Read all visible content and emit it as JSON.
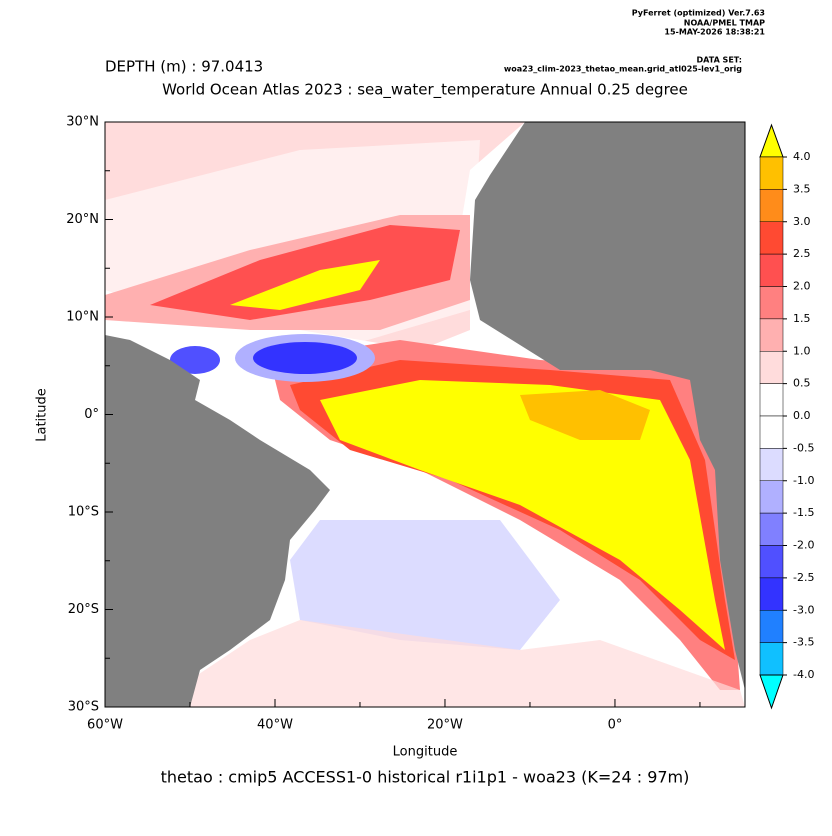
{
  "header": {
    "software": "PyFerret (optimized) Ver.7.63",
    "lab": "NOAA/PMEL TMAP",
    "timestamp": "15-MAY-2026 18:38:21",
    "dataset_label": "DATA SET:",
    "dataset": "woa23_clim-2023_thetao_mean.grid_atl025-lev1_orig",
    "depth": "DEPTH (m) : 97.0413",
    "title": "World Ocean Atlas 2023 : sea_water_temperature Annual  0.25 degree"
  },
  "map": {
    "xlabel": "Longitude",
    "ylabel": "Latitude",
    "caption": "thetao : cmip5 ACCESS1-0 historical r1i1p1 - woa23  (K=24 : 97m)",
    "xlim": [
      -60,
      15.3
    ],
    "ylim": [
      -30,
      30
    ],
    "xticks": [
      {
        "value": -60,
        "label": "60°W"
      },
      {
        "value": -40,
        "label": "40°W"
      },
      {
        "value": -20,
        "label": "20°W"
      },
      {
        "value": 0,
        "label": "0°"
      }
    ],
    "xminor": [
      -50,
      -30,
      -10,
      10
    ],
    "yticks": [
      {
        "value": 30,
        "label": "30°N"
      },
      {
        "value": 20,
        "label": "20°N"
      },
      {
        "value": 10,
        "label": "10°N"
      },
      {
        "value": 0,
        "label": "0°"
      },
      {
        "value": -10,
        "label": "10°S"
      },
      {
        "value": -20,
        "label": "20°S"
      },
      {
        "value": -30,
        "label": "30°S"
      }
    ],
    "yminor": [
      25,
      15,
      5,
      -5,
      -15,
      -25
    ]
  },
  "colorbar": {
    "levels": [
      {
        "value": 4,
        "label": "4.0"
      },
      {
        "value": 3.5,
        "label": "3.5"
      },
      {
        "value": 3,
        "label": "3.0"
      },
      {
        "value": 2.5,
        "label": "2.5"
      },
      {
        "value": 2,
        "label": "2.0"
      },
      {
        "value": 1.5,
        "label": "1.5"
      },
      {
        "value": 1,
        "label": "1.0"
      },
      {
        "value": 0.5,
        "label": "0.5"
      },
      {
        "value": 0,
        "label": "0.0"
      },
      {
        "value": -0.5,
        "label": "-0.5"
      },
      {
        "value": -1,
        "label": "-1.0"
      },
      {
        "value": -1.5,
        "label": "-1.5"
      },
      {
        "value": -2,
        "label": "-2.0"
      },
      {
        "value": -2.5,
        "label": "-2.5"
      },
      {
        "value": -3,
        "label": "-3.0"
      },
      {
        "value": -3.5,
        "label": "-3.5"
      },
      {
        "value": -4,
        "label": "-4.0"
      }
    ],
    "colors": [
      "#ffff00",
      "#ffc000",
      "#ff8c1a",
      "#ff4a32",
      "#ff5050",
      "#ff8080",
      "#ffb0b0",
      "#ffdcdc",
      "#ffffff",
      "#ffffff",
      "#dcdcff",
      "#b0b0ff",
      "#8080ff",
      "#5050ff",
      "#3333ff",
      "#2080ff",
      "#10c0ff",
      "#00ffff"
    ]
  }
}
